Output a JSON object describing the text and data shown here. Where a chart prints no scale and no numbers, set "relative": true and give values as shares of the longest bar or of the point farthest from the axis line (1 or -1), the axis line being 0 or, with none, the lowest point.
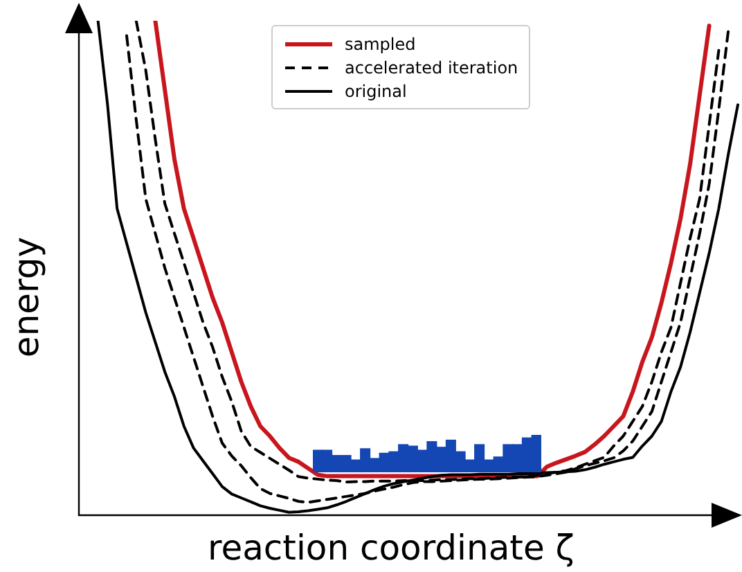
{
  "chart_data": [
    {
      "type": "line",
      "relative": true,
      "xlabel": "reaction coordinate ζ",
      "ylabel": "energy",
      "legend": "top",
      "marker": "none",
      "categories": [
        null,
        null,
        null,
        null,
        null,
        null,
        null,
        null,
        null,
        null,
        null,
        null,
        null,
        null,
        null,
        null,
        null,
        null,
        null,
        null,
        null,
        null,
        null,
        null,
        null,
        null,
        null,
        null,
        null,
        null,
        null,
        null,
        null,
        null,
        null,
        null,
        null,
        null,
        null,
        null,
        null,
        null,
        null,
        null,
        null,
        null,
        null,
        null,
        null,
        null,
        null,
        null,
        null,
        null,
        null,
        null,
        null,
        null,
        null,
        null,
        null,
        null,
        null,
        null,
        null,
        null,
        null,
        null,
        null,
        null
      ],
      "series": [
        {
          "name": "sampled",
          "color": "#c8161d",
          "line_style": "solid",
          "values": [
            null,
            null,
            null,
            null,
            null,
            null,
            null,
            null,
            1.0,
            0.86,
            0.72,
            0.62,
            0.56,
            0.5,
            0.44,
            0.39,
            0.33,
            0.27,
            0.22,
            0.18,
            0.16,
            0.136,
            0.116,
            0.108,
            0.095,
            0.082,
            0.079,
            0.079,
            0.079,
            0.079,
            0.079,
            0.079,
            0.079,
            0.079,
            0.079,
            0.079,
            0.079,
            0.079,
            0.079,
            0.079,
            0.079,
            0.079,
            0.079,
            0.079,
            0.079,
            0.079,
            0.079,
            0.079,
            0.079,
            0.098,
            0.106,
            0.113,
            0.12,
            0.128,
            0.143,
            0.16,
            0.18,
            0.2,
            0.25,
            0.31,
            0.36,
            0.43,
            0.51,
            0.6,
            0.71,
            0.85,
            0.99,
            null,
            null,
            null
          ]
        },
        {
          "name": "accelerated iteration",
          "color": "#000000",
          "line_style": "dashed",
          "values": [
            null,
            null,
            null,
            null,
            null,
            null,
            1.0,
            0.9,
            0.76,
            0.63,
            0.57,
            0.51,
            0.45,
            0.39,
            0.34,
            0.28,
            0.23,
            0.17,
            0.139,
            0.127,
            0.115,
            0.103,
            0.091,
            0.078,
            0.075,
            0.073,
            0.071,
            0.07,
            0.067,
            0.068,
            0.068,
            0.069,
            0.069,
            0.069,
            0.07,
            0.07,
            0.07,
            0.071,
            0.072,
            0.072,
            0.073,
            0.074,
            0.074,
            0.075,
            0.076,
            0.077,
            0.077,
            0.078,
            0.081,
            0.084,
            0.087,
            0.09,
            0.096,
            0.103,
            0.11,
            0.117,
            0.14,
            0.16,
            0.19,
            0.22,
            0.27,
            0.33,
            0.38,
            0.47,
            0.56,
            0.64,
            0.79,
            0.94,
            null,
            null
          ]
        },
        {
          "color": "#000000",
          "line_style": "dashed",
          "values": [
            null,
            null,
            null,
            null,
            null,
            0.97,
            0.8,
            0.64,
            0.57,
            0.5,
            0.44,
            0.38,
            0.32,
            0.26,
            0.2,
            0.146,
            0.12,
            0.1,
            0.076,
            0.054,
            0.044,
            0.039,
            0.034,
            0.028,
            0.026,
            0.029,
            0.032,
            0.035,
            0.038,
            0.041,
            0.044,
            0.049,
            0.053,
            0.057,
            0.062,
            0.066,
            0.068,
            0.068,
            0.069,
            0.07,
            0.071,
            0.072,
            0.073,
            0.073,
            0.074,
            0.075,
            0.076,
            0.077,
            0.078,
            0.081,
            0.084,
            0.087,
            0.094,
            0.1,
            0.105,
            0.11,
            0.116,
            0.13,
            0.15,
            0.18,
            0.21,
            0.27,
            0.33,
            0.39,
            0.48,
            0.57,
            0.67,
            0.82,
            0.98,
            null
          ]
        },
        {
          "name": "original",
          "color": "#000000",
          "line_style": "solid",
          "values": [
            null,
            null,
            1.0,
            0.83,
            0.62,
            0.55,
            0.48,
            0.41,
            0.35,
            0.29,
            0.24,
            0.18,
            0.136,
            0.11,
            0.084,
            0.058,
            0.043,
            0.035,
            0.027,
            0.019,
            0.014,
            0.01,
            0.006,
            0.007,
            0.009,
            0.012,
            0.015,
            0.021,
            0.028,
            0.036,
            0.044,
            0.052,
            0.059,
            0.064,
            0.068,
            0.071,
            0.075,
            0.078,
            0.081,
            0.082,
            0.082,
            0.082,
            0.083,
            0.083,
            0.083,
            0.083,
            0.084,
            0.084,
            0.085,
            0.086,
            0.087,
            0.088,
            0.089,
            0.092,
            0.097,
            0.103,
            0.108,
            0.113,
            0.117,
            0.14,
            0.16,
            0.19,
            0.25,
            0.3,
            0.37,
            0.45,
            0.53,
            0.62,
            0.73,
            0.83
          ]
        }
      ]
    },
    {
      "type": "bar",
      "relative": true,
      "color": "#1446b4",
      "categories": [
        null,
        null,
        null,
        null,
        null,
        null,
        null,
        null,
        null,
        null,
        null,
        null,
        null,
        null,
        null,
        null,
        null,
        null,
        null,
        null,
        null,
        null,
        null,
        null
      ],
      "values": [
        0.59,
        0.59,
        0.45,
        0.45,
        0.33,
        0.63,
        0.37,
        0.51,
        0.55,
        0.74,
        0.7,
        0.59,
        0.82,
        0.67,
        0.86,
        0.55,
        0.33,
        0.74,
        0.33,
        0.41,
        0.74,
        0.74,
        0.92,
        1.0
      ]
    }
  ]
}
